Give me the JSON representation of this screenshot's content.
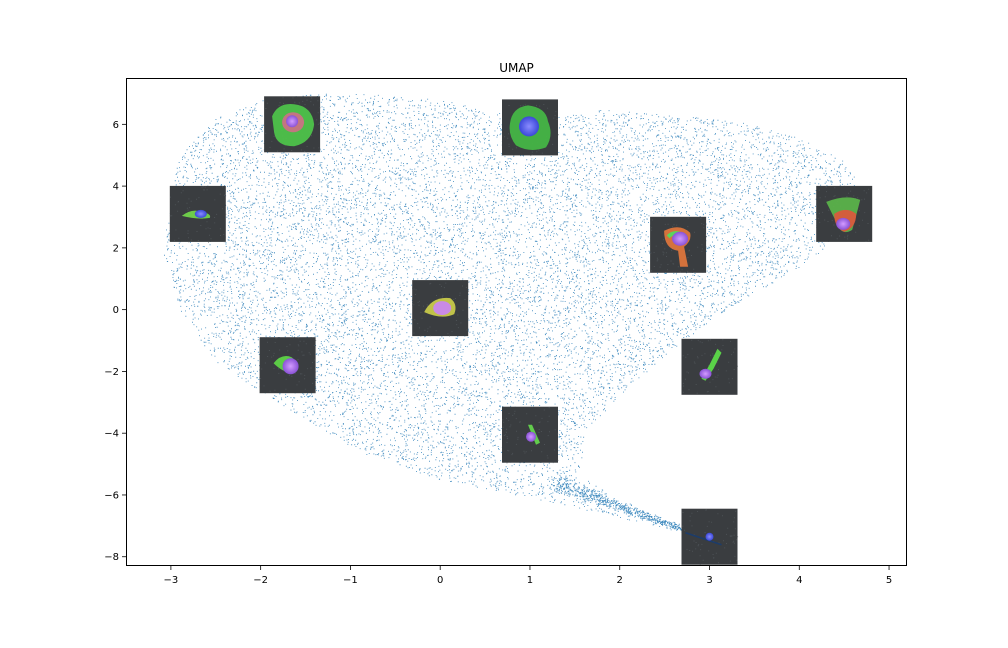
{
  "chart_data": {
    "type": "scatter",
    "title": "UMAP",
    "xlabel": "",
    "ylabel": "",
    "xlim": [
      -3.5,
      5.2
    ],
    "ylim": [
      -8.3,
      7.5
    ],
    "xticks": [
      -3,
      -2,
      -1,
      0,
      1,
      2,
      3,
      4,
      5
    ],
    "yticks": [
      -8,
      -6,
      -4,
      -2,
      0,
      2,
      4,
      6
    ],
    "grid": false,
    "legend": "none",
    "point_color": "#1f77b4",
    "inset_background_color": "#3a3d40",
    "embedding_outline": [
      [
        -3.0,
        3.9
      ],
      [
        -2.9,
        5.0
      ],
      [
        -2.5,
        6.2
      ],
      [
        -2.0,
        6.8
      ],
      [
        -1.4,
        7.0
      ],
      [
        -0.9,
        7.0
      ],
      [
        0.0,
        6.8
      ],
      [
        0.6,
        6.4
      ],
      [
        1.2,
        6.2
      ],
      [
        1.8,
        6.5
      ],
      [
        2.6,
        6.3
      ],
      [
        3.3,
        6.1
      ],
      [
        4.0,
        5.6
      ],
      [
        4.5,
        4.8
      ],
      [
        4.7,
        4.0
      ],
      [
        4.6,
        3.0
      ],
      [
        4.1,
        1.5
      ],
      [
        3.4,
        0.4
      ],
      [
        2.7,
        -1.0
      ],
      [
        2.1,
        -2.5
      ],
      [
        1.6,
        -4.0
      ],
      [
        1.6,
        -5.3
      ],
      [
        2.0,
        -6.3
      ],
      [
        2.7,
        -6.9
      ],
      [
        3.1,
        -7.6
      ],
      [
        2.4,
        -7.0
      ],
      [
        1.2,
        -6.2
      ],
      [
        0.0,
        -5.5
      ],
      [
        -0.9,
        -4.6
      ],
      [
        -1.7,
        -3.2
      ],
      [
        -2.5,
        -1.7
      ],
      [
        -2.9,
        0.0
      ],
      [
        -3.1,
        2.0
      ]
    ],
    "cell_images": [
      {
        "x": -1.65,
        "y": 6.0,
        "cell": "green-red-large"
      },
      {
        "x": 1.0,
        "y": 5.9,
        "cell": "green-blue-nucleus"
      },
      {
        "x": -2.7,
        "y": 3.1,
        "cell": "small-elongated"
      },
      {
        "x": 4.5,
        "y": 3.1,
        "cell": "red-green-spread"
      },
      {
        "x": 2.65,
        "y": 2.1,
        "cell": "red-tailed"
      },
      {
        "x": 0.0,
        "y": 0.05,
        "cell": "orange-blob"
      },
      {
        "x": -1.7,
        "y": -1.8,
        "cell": "purple-green"
      },
      {
        "x": 3.0,
        "y": -1.85,
        "cell": "green-thin"
      },
      {
        "x": 1.0,
        "y": -4.05,
        "cell": "small-spindle"
      },
      {
        "x": 3.0,
        "y": -7.35,
        "cell": "tiny-round"
      }
    ]
  }
}
